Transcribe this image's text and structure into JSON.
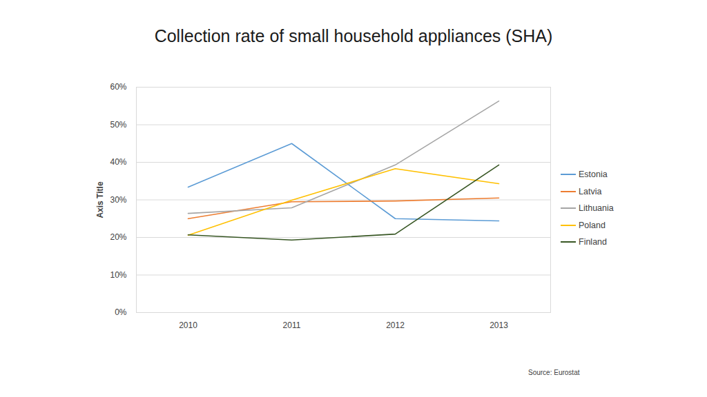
{
  "chart_data": {
    "type": "line",
    "title": "Collection rate of small household appliances (SHA)",
    "ylabel": "Axis Title",
    "source": "Source: Eurostat",
    "categories": [
      "2010",
      "2011",
      "2012",
      "2013"
    ],
    "series": [
      {
        "name": "Estonia",
        "color": "#5b9bd5",
        "values": [
          33.4,
          45.0,
          25.0,
          24.4
        ]
      },
      {
        "name": "Latvia",
        "color": "#ed7d31",
        "values": [
          25.0,
          29.5,
          29.7,
          30.5
        ]
      },
      {
        "name": "Lithuania",
        "color": "#a5a5a5",
        "values": [
          26.4,
          27.9,
          39.3,
          56.3
        ]
      },
      {
        "name": "Poland",
        "color": "#ffc000",
        "values": [
          20.6,
          29.9,
          38.3,
          34.3
        ]
      },
      {
        "name": "Finland",
        "color": "#375623",
        "values": [
          20.7,
          19.3,
          20.9,
          39.3
        ]
      }
    ],
    "ylim": [
      0,
      60
    ],
    "yticks": [
      {
        "value": 0,
        "label": "0%"
      },
      {
        "value": 10,
        "label": "10%"
      },
      {
        "value": 20,
        "label": "20%"
      },
      {
        "value": 30,
        "label": "30%"
      },
      {
        "value": 40,
        "label": "40%"
      },
      {
        "value": 50,
        "label": "50%"
      },
      {
        "value": 60,
        "label": "60%"
      }
    ],
    "grid": true,
    "legend": "right"
  }
}
